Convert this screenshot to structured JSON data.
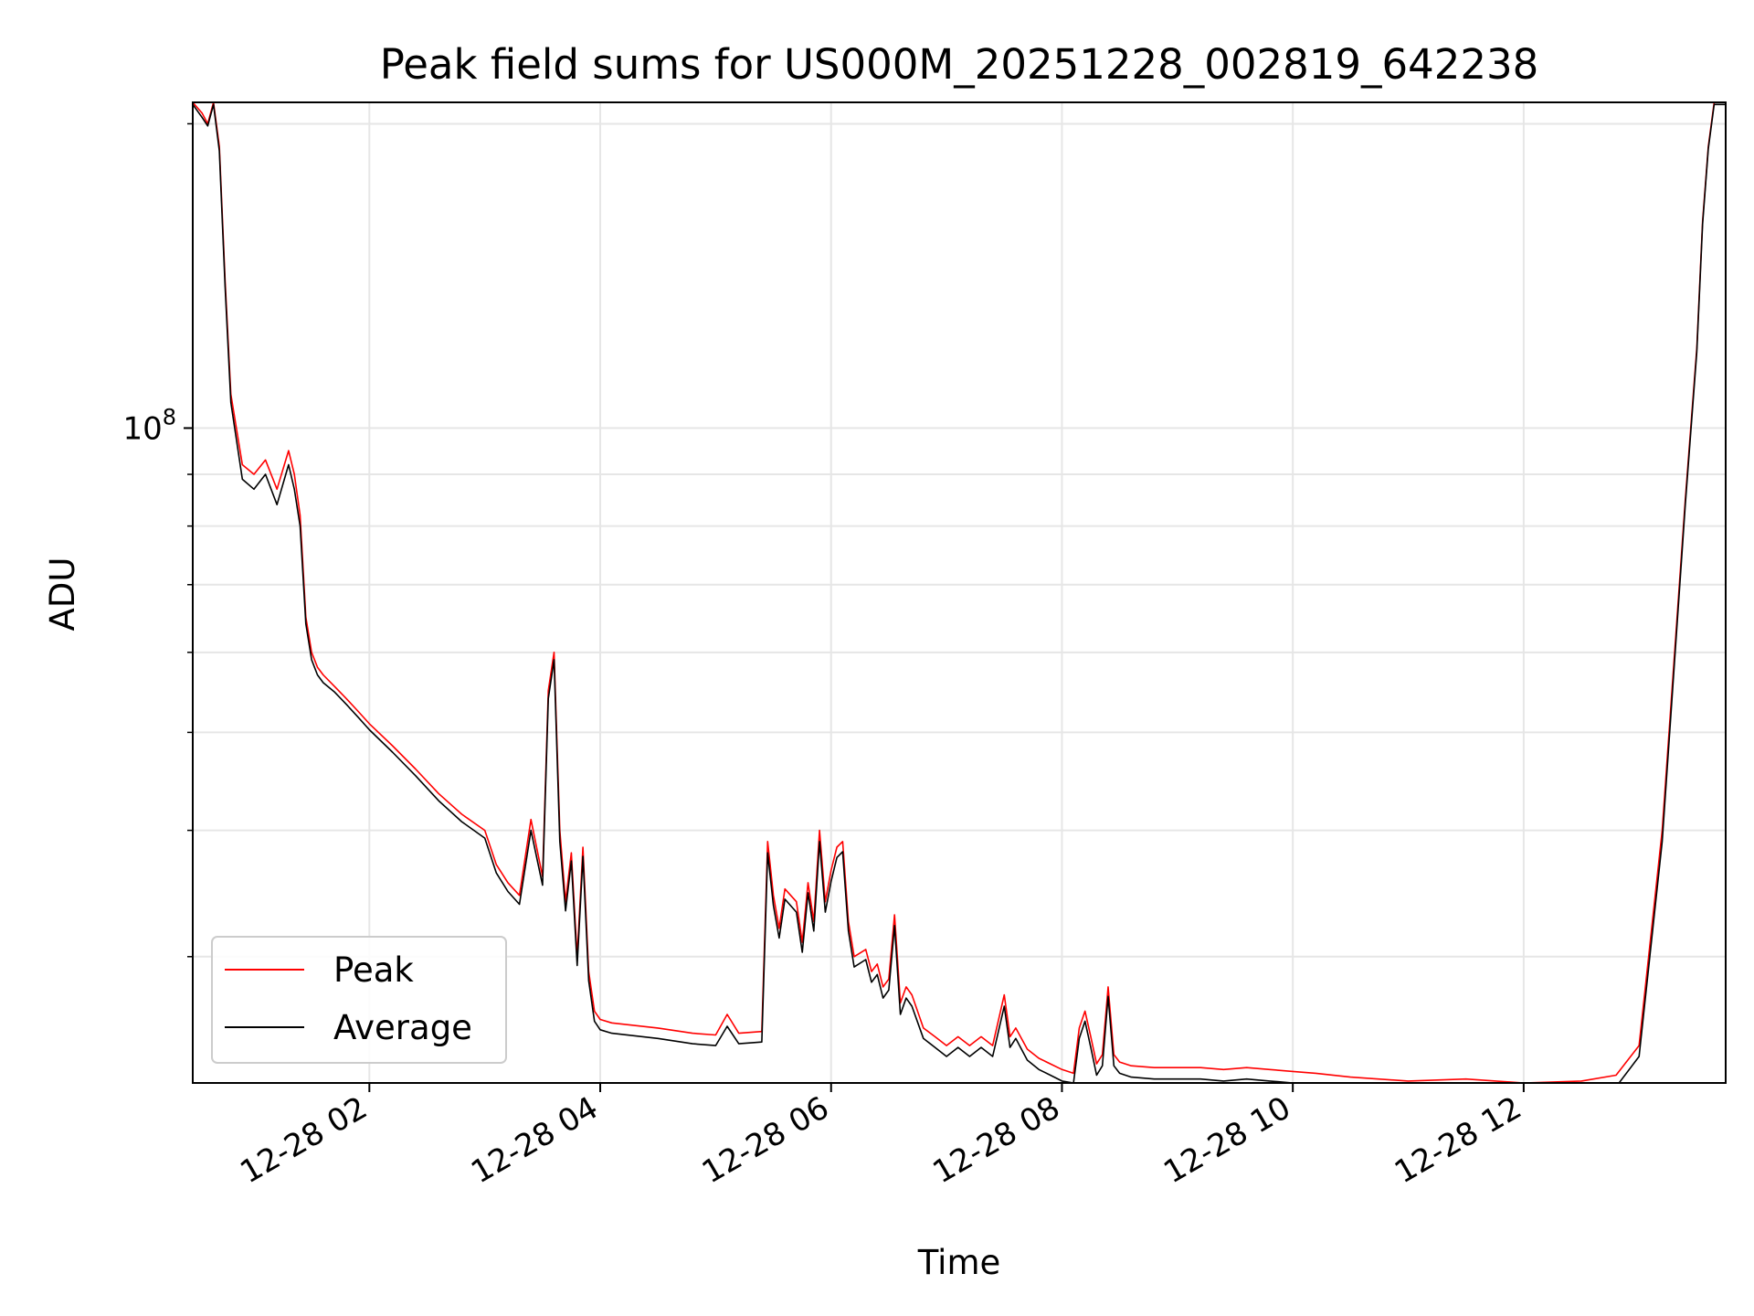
{
  "chart_data": {
    "type": "line",
    "title": "Peak field sums for US000M_20251228_002819_642238",
    "xlabel": "Time",
    "ylabel": "ADU",
    "yscale": "log",
    "ylim": [
      22500000,
      210000000
    ],
    "xlim_hours": [
      0.47,
      13.75
    ],
    "grid": true,
    "legend_position": "lower-left",
    "x_ticks": [
      {
        "hour": 2,
        "label": "12-28 02"
      },
      {
        "hour": 4,
        "label": "12-28 04"
      },
      {
        "hour": 6,
        "label": "12-28 06"
      },
      {
        "hour": 8,
        "label": "12-28 08"
      },
      {
        "hour": 10,
        "label": "12-28 10"
      },
      {
        "hour": 12,
        "label": "12-28 12"
      }
    ],
    "y_ticks": [
      {
        "value": 100000000,
        "base": "10",
        "exponent": "8"
      }
    ],
    "y_minor_ticks": [
      30000000,
      40000000,
      50000000,
      60000000,
      70000000,
      80000000,
      90000000,
      200000000
    ],
    "series": [
      {
        "name": "Peak",
        "color": "#ff0000",
        "x_hours": [
          0.47,
          0.55,
          0.6,
          0.65,
          0.7,
          0.75,
          0.8,
          0.9,
          1.0,
          1.1,
          1.2,
          1.3,
          1.35,
          1.4,
          1.45,
          1.5,
          1.55,
          1.6,
          1.7,
          1.8,
          1.9,
          2.0,
          2.2,
          2.4,
          2.6,
          2.8,
          3.0,
          3.1,
          3.2,
          3.3,
          3.4,
          3.5,
          3.55,
          3.6,
          3.65,
          3.7,
          3.75,
          3.8,
          3.85,
          3.9,
          3.95,
          4.0,
          4.1,
          4.5,
          4.8,
          5.0,
          5.1,
          5.2,
          5.4,
          5.45,
          5.5,
          5.55,
          5.6,
          5.7,
          5.75,
          5.8,
          5.85,
          5.9,
          5.95,
          6.0,
          6.05,
          6.1,
          6.15,
          6.2,
          6.3,
          6.35,
          6.4,
          6.45,
          6.5,
          6.55,
          6.6,
          6.65,
          6.7,
          6.8,
          6.9,
          7.0,
          7.1,
          7.2,
          7.3,
          7.4,
          7.5,
          7.55,
          7.6,
          7.7,
          7.8,
          7.9,
          8.0,
          8.1,
          8.15,
          8.2,
          8.25,
          8.3,
          8.35,
          8.4,
          8.45,
          8.5,
          8.6,
          8.8,
          9.0,
          9.2,
          9.4,
          9.6,
          9.8,
          10.0,
          10.2,
          10.5,
          11.0,
          11.5,
          12.0,
          12.5,
          12.8,
          13.0,
          13.2,
          13.4,
          13.5,
          13.55,
          13.6,
          13.65,
          13.75
        ],
        "values": [
          210000000,
          205000000,
          200000000,
          210000000,
          190000000,
          140000000,
          108000000,
          92000000,
          90000000,
          93000000,
          87000000,
          95000000,
          90000000,
          82000000,
          65000000,
          60000000,
          58000000,
          57000000,
          55500000,
          54000000,
          52500000,
          51000000,
          48500000,
          46000000,
          43500000,
          41500000,
          40000000,
          37000000,
          35500000,
          34500000,
          41000000,
          36000000,
          55000000,
          60000000,
          40000000,
          34000000,
          38000000,
          30000000,
          38500000,
          29000000,
          26500000,
          26000000,
          25800000,
          25500000,
          25200000,
          25100000,
          26300000,
          25200000,
          25300000,
          39000000,
          34500000,
          32000000,
          35000000,
          34000000,
          31000000,
          35500000,
          32500000,
          40000000,
          34000000,
          36500000,
          38500000,
          39000000,
          32500000,
          30000000,
          30500000,
          29000000,
          29500000,
          28000000,
          28500000,
          33000000,
          27000000,
          28000000,
          27500000,
          25500000,
          25000000,
          24500000,
          25000000,
          24500000,
          25000000,
          24500000,
          27500000,
          25000000,
          25500000,
          24300000,
          23800000,
          23500000,
          23200000,
          23000000,
          25500000,
          26500000,
          25000000,
          23500000,
          24000000,
          28000000,
          24000000,
          23600000,
          23400000,
          23300000,
          23300000,
          23300000,
          23200000,
          23300000,
          23200000,
          23100000,
          23000000,
          22800000,
          22600000,
          22700000,
          22500000,
          22600000,
          22900000,
          24500000,
          40000000,
          85000000,
          120000000,
          160000000,
          190000000,
          210000000,
          210000000
        ]
      },
      {
        "name": "Average",
        "color": "#000000",
        "x_hours": [
          0.47,
          0.55,
          0.6,
          0.65,
          0.7,
          0.75,
          0.8,
          0.9,
          1.0,
          1.1,
          1.2,
          1.3,
          1.35,
          1.4,
          1.45,
          1.5,
          1.55,
          1.6,
          1.7,
          1.8,
          1.9,
          2.0,
          2.2,
          2.4,
          2.6,
          2.8,
          3.0,
          3.1,
          3.2,
          3.3,
          3.4,
          3.5,
          3.55,
          3.6,
          3.65,
          3.7,
          3.75,
          3.8,
          3.85,
          3.9,
          3.95,
          4.0,
          4.1,
          4.5,
          4.8,
          5.0,
          5.1,
          5.2,
          5.4,
          5.45,
          5.5,
          5.55,
          5.6,
          5.7,
          5.75,
          5.8,
          5.85,
          5.9,
          5.95,
          6.0,
          6.05,
          6.1,
          6.15,
          6.2,
          6.3,
          6.35,
          6.4,
          6.45,
          6.5,
          6.55,
          6.6,
          6.65,
          6.7,
          6.8,
          6.9,
          7.0,
          7.1,
          7.2,
          7.3,
          7.4,
          7.5,
          7.55,
          7.6,
          7.7,
          7.8,
          7.9,
          8.0,
          8.1,
          8.15,
          8.2,
          8.25,
          8.3,
          8.35,
          8.4,
          8.45,
          8.5,
          8.6,
          8.8,
          9.0,
          9.2,
          9.4,
          9.6,
          9.8,
          10.0,
          10.2,
          10.5,
          11.0,
          11.5,
          12.0,
          12.5,
          12.8,
          13.0,
          13.2,
          13.4,
          13.5,
          13.55,
          13.6,
          13.65,
          13.75
        ],
        "values": [
          209000000,
          203000000,
          199000000,
          209000000,
          188000000,
          138000000,
          106000000,
          89000000,
          87000000,
          90000000,
          84000000,
          92000000,
          87000000,
          80000000,
          64000000,
          59000000,
          57000000,
          56000000,
          54800000,
          53300000,
          51800000,
          50300000,
          47800000,
          45300000,
          42800000,
          40800000,
          39300000,
          36300000,
          34800000,
          33800000,
          40000000,
          35300000,
          54000000,
          59000000,
          39000000,
          33300000,
          37300000,
          29400000,
          37700000,
          28400000,
          25900000,
          25400000,
          25200000,
          24900000,
          24600000,
          24500000,
          25600000,
          24600000,
          24700000,
          38000000,
          33700000,
          31300000,
          34200000,
          33200000,
          30300000,
          34700000,
          31800000,
          39000000,
          33200000,
          35600000,
          37600000,
          38100000,
          31800000,
          29300000,
          29800000,
          28300000,
          28800000,
          27300000,
          27800000,
          32200000,
          26300000,
          27300000,
          26800000,
          24900000,
          24400000,
          23900000,
          24400000,
          23900000,
          24400000,
          23900000,
          26800000,
          24400000,
          24900000,
          23700000,
          23200000,
          22900000,
          22600000,
          22500000,
          24900000,
          25900000,
          24400000,
          22900000,
          23400000,
          27400000,
          23400000,
          23000000,
          22800000,
          22700000,
          22700000,
          22700000,
          22600000,
          22700000,
          22600000,
          22500000,
          22400000,
          22300000,
          22200000,
          22200000,
          22100000,
          22100000,
          22300000,
          23900000,
          39000000,
          84000000,
          119000000,
          159000000,
          189000000,
          209000000,
          209000000
        ]
      }
    ]
  }
}
